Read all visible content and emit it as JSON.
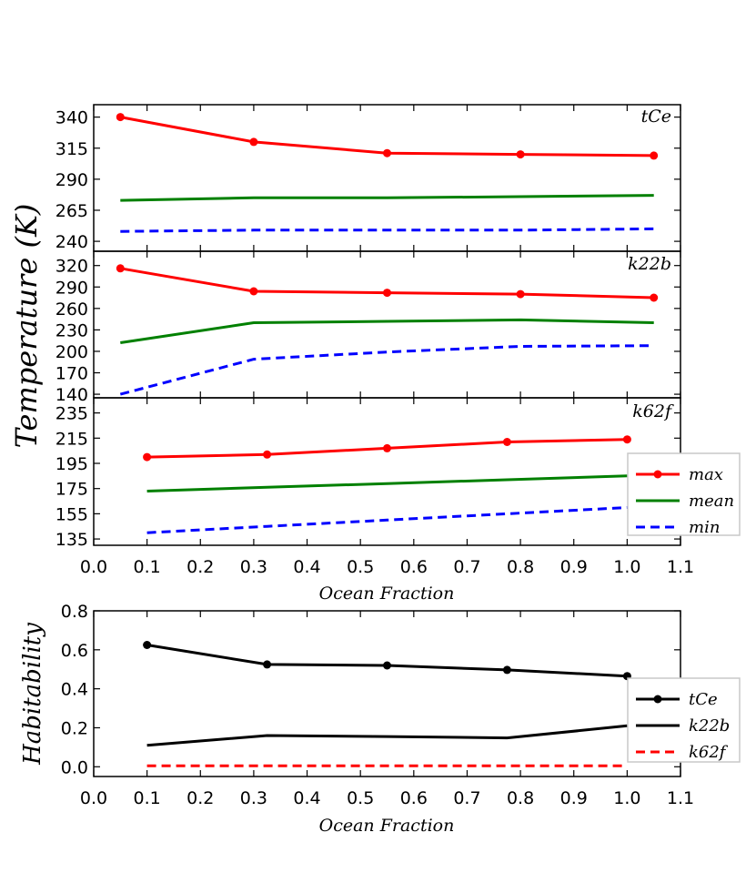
{
  "chart_data": [
    {
      "type": "line",
      "panel_label": "tCe",
      "ylim": [
        232,
        350
      ],
      "yticks": [
        240,
        265,
        290,
        315,
        340
      ],
      "series": [
        {
          "name": "max",
          "color": "#ff0000",
          "style": "solid-markers",
          "x": [
            0.05,
            0.3,
            0.55,
            0.8,
            1.05
          ],
          "y": [
            340,
            320,
            311,
            310,
            309
          ]
        },
        {
          "name": "mean",
          "color": "#008000",
          "style": "solid",
          "x": [
            0.05,
            0.3,
            0.55,
            0.8,
            1.05
          ],
          "y": [
            273,
            275,
            275,
            276,
            277
          ]
        },
        {
          "name": "min",
          "color": "#0000ff",
          "style": "dashed",
          "x": [
            0.05,
            0.3,
            0.55,
            0.8,
            1.05
          ],
          "y": [
            248,
            249,
            249,
            249,
            250
          ]
        }
      ]
    },
    {
      "type": "line",
      "panel_label": "k22b",
      "ylim": [
        135,
        340
      ],
      "yticks": [
        140,
        170,
        200,
        230,
        260,
        290,
        320
      ],
      "series": [
        {
          "name": "max",
          "color": "#ff0000",
          "style": "solid-markers",
          "x": [
            0.05,
            0.3,
            0.55,
            0.8,
            1.05
          ],
          "y": [
            316,
            284,
            282,
            280,
            275
          ]
        },
        {
          "name": "mean",
          "color": "#008000",
          "style": "solid",
          "x": [
            0.05,
            0.3,
            0.55,
            0.8,
            1.05
          ],
          "y": [
            212,
            240,
            242,
            244,
            240
          ]
        },
        {
          "name": "min",
          "color": "#0000ff",
          "style": "dashed",
          "x": [
            0.05,
            0.3,
            0.55,
            0.8,
            1.05
          ],
          "y": [
            140,
            189,
            199,
            207,
            208
          ]
        }
      ]
    },
    {
      "type": "line",
      "panel_label": "k62f",
      "ylim": [
        130,
        247
      ],
      "yticks": [
        135,
        155,
        175,
        195,
        215,
        235
      ],
      "legend": {
        "position": "right",
        "entries": [
          "max",
          "mean",
          "min"
        ]
      },
      "x_axis": {
        "label": "Ocean Fraction",
        "xlim": [
          0.0,
          1.1
        ],
        "ticks": [
          "0.0",
          "0.1",
          "0.2",
          "0.3",
          "0.4",
          "0.5",
          "0.6",
          "0.7",
          "0.8",
          "0.9",
          "1.0",
          "1.1"
        ]
      },
      "series": [
        {
          "name": "max",
          "color": "#ff0000",
          "style": "solid-markers",
          "x": [
            0.1,
            0.325,
            0.55,
            0.775,
            1.0
          ],
          "y": [
            200,
            202,
            207,
            212,
            214
          ]
        },
        {
          "name": "mean",
          "color": "#008000",
          "style": "solid",
          "x": [
            0.1,
            0.325,
            0.55,
            0.775,
            1.0
          ],
          "y": [
            173,
            176,
            179,
            182,
            185
          ]
        },
        {
          "name": "min",
          "color": "#0000ff",
          "style": "dashed",
          "x": [
            0.1,
            0.325,
            0.55,
            0.775,
            1.0
          ],
          "y": [
            140,
            145,
            150,
            155,
            160
          ]
        }
      ]
    },
    {
      "type": "line",
      "ylabel": "Habitability",
      "xlabel": "Ocean Fraction",
      "xlim": [
        0.0,
        1.1
      ],
      "ylim": [
        -0.05,
        0.8
      ],
      "xticks": [
        "0.0",
        "0.1",
        "0.2",
        "0.3",
        "0.4",
        "0.5",
        "0.6",
        "0.7",
        "0.8",
        "0.9",
        "1.0",
        "1.1"
      ],
      "yticks": [
        "0.0",
        "0.2",
        "0.4",
        "0.6",
        "0.8"
      ],
      "legend": {
        "position": "right",
        "entries": [
          "tCe",
          "k22b",
          "k62f"
        ]
      },
      "series": [
        {
          "name": "tCe",
          "color": "#000000",
          "style": "solid-markers",
          "x": [
            0.1,
            0.325,
            0.55,
            0.775,
            1.0
          ],
          "y": [
            0.625,
            0.525,
            0.52,
            0.497,
            0.465
          ]
        },
        {
          "name": "k22b",
          "color": "#000000",
          "style": "solid",
          "x": [
            0.1,
            0.325,
            0.55,
            0.775,
            1.0
          ],
          "y": [
            0.11,
            0.16,
            0.155,
            0.148,
            0.21
          ]
        },
        {
          "name": "k62f",
          "color": "#ff0000",
          "style": "dashed",
          "x": [
            0.1,
            0.325,
            0.55,
            0.775,
            1.0
          ],
          "y": [
            0.005,
            0.005,
            0.005,
            0.005,
            0.005
          ]
        }
      ]
    }
  ],
  "shared_ylabel": "Temperature (K)"
}
